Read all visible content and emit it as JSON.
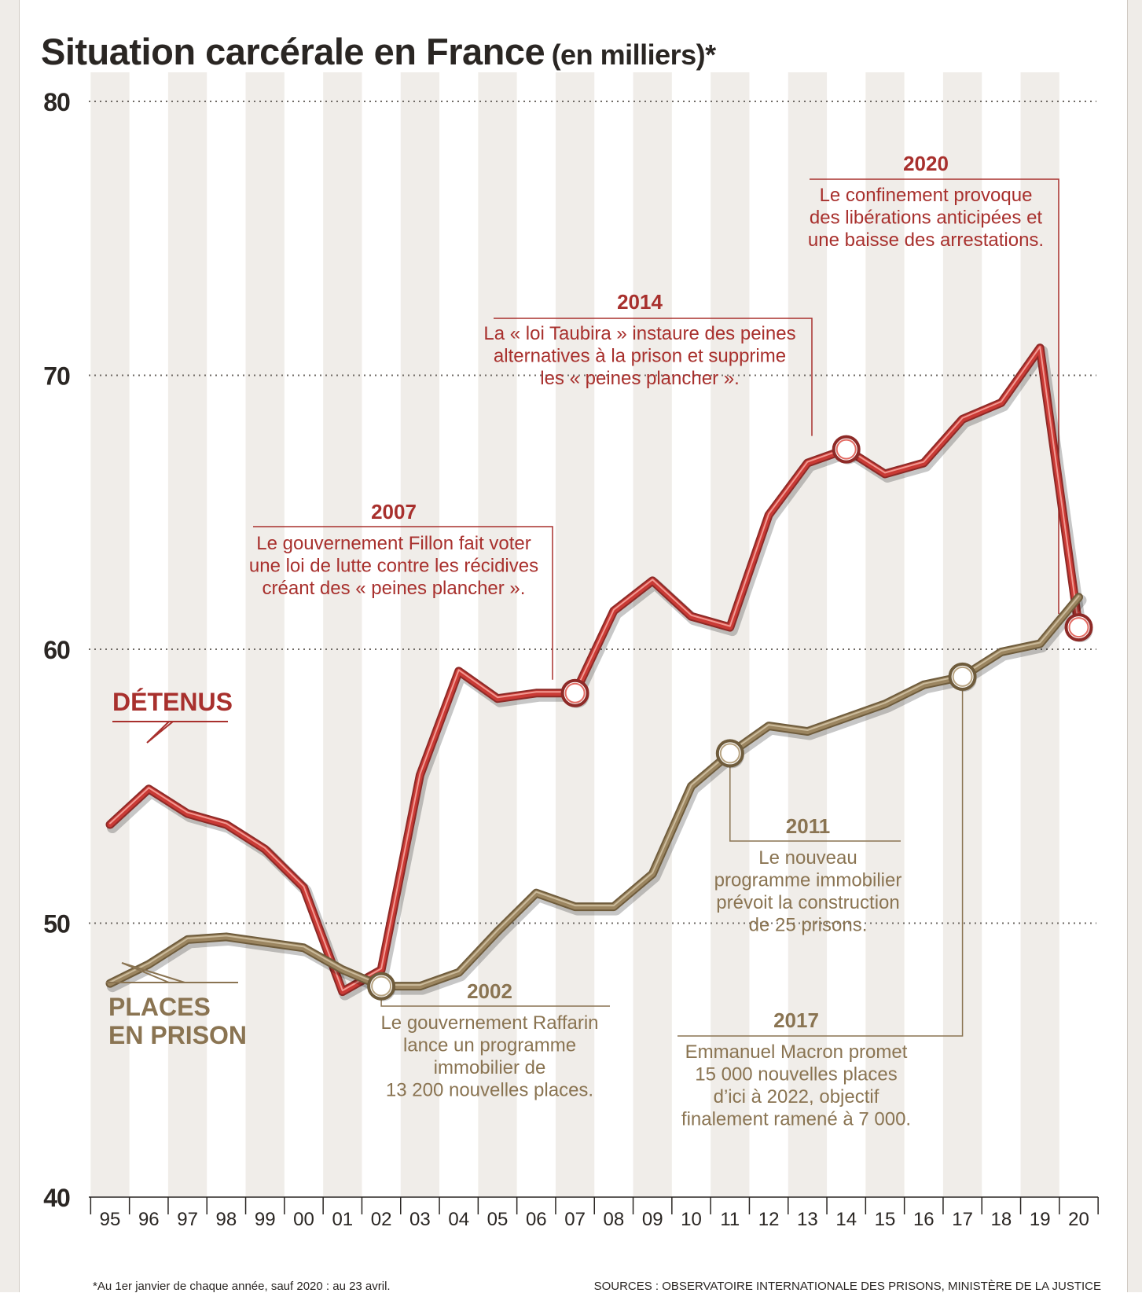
{
  "title": {
    "main": "Situation carcérale en France",
    "unit": "(en milliers)*"
  },
  "footnote": "*Au 1er janvier de chaque année, sauf 2020 : au 23 avril.",
  "sources": "SOURCES : OBSERVATOIRE INTERNATIONALE DES PRISONS, MINISTÈRE DE LA JUSTICE",
  "colors": {
    "detenus": "#c93a35",
    "places": "#9b8560",
    "grid": "#6f6a65",
    "stripe": "#f0ede9"
  },
  "chart_data": {
    "type": "line",
    "x": [
      "95",
      "96",
      "97",
      "98",
      "99",
      "00",
      "01",
      "02",
      "03",
      "04",
      "05",
      "06",
      "07",
      "08",
      "09",
      "10",
      "11",
      "12",
      "13",
      "14",
      "15",
      "16",
      "17",
      "18",
      "19",
      "20"
    ],
    "ylim": [
      40,
      80
    ],
    "yticks": [
      "40",
      "50",
      "60",
      "70",
      "80"
    ],
    "grid": "horizontal-dotted",
    "series": [
      {
        "name": "DÉTENUS",
        "key": "detenus",
        "values": [
          53.6,
          54.9,
          54.0,
          53.6,
          52.7,
          51.3,
          47.5,
          48.3,
          55.4,
          59.2,
          58.2,
          58.4,
          58.4,
          61.4,
          62.5,
          61.2,
          60.8,
          64.9,
          66.8,
          67.3,
          66.4,
          66.8,
          68.4,
          69.0,
          71.0,
          60.8
        ]
      },
      {
        "name": "PLACES EN PRISON",
        "key": "places",
        "values": [
          47.8,
          48.5,
          49.4,
          49.5,
          49.3,
          49.1,
          48.3,
          47.7,
          47.7,
          48.2,
          49.7,
          51.1,
          50.6,
          50.6,
          51.8,
          55.0,
          56.2,
          57.2,
          57.0,
          57.5,
          58.0,
          58.7,
          59.0,
          59.9,
          60.2,
          61.9
        ]
      }
    ],
    "annotations": [
      {
        "year": "2007",
        "series": "detenus",
        "x_index": 12,
        "text": [
          "Le gouvernement Fillon fait voter",
          "une loi de lutte contre les récidives",
          "créant des « peines plancher »."
        ]
      },
      {
        "year": "2014",
        "series": "detenus",
        "x_index": 19,
        "text": [
          "La « loi Taubira » instaure des peines",
          "alternatives à la prison et supprime",
          "les « peines plancher »."
        ]
      },
      {
        "year": "2020",
        "series": "detenus",
        "x_index": 25,
        "text": [
          "Le confinement provoque",
          "des libérations anticipées et",
          "une baisse des arrestations."
        ]
      },
      {
        "year": "2002",
        "series": "places",
        "x_index": 7,
        "text": [
          "Le gouvernement Raffarin",
          "lance un programme",
          "immobilier de",
          "13 200 nouvelles places."
        ]
      },
      {
        "year": "2011",
        "series": "places",
        "x_index": 16,
        "text": [
          "Le nouveau",
          "programme immobilier",
          "prévoit la construction",
          "de 25 prisons."
        ]
      },
      {
        "year": "2017",
        "series": "places",
        "x_index": 22,
        "text": [
          "Emmanuel Macron promet",
          "15 000 nouvelles places",
          "d’ici à 2022, objectif",
          "finalement ramené à 7 000."
        ]
      }
    ]
  }
}
